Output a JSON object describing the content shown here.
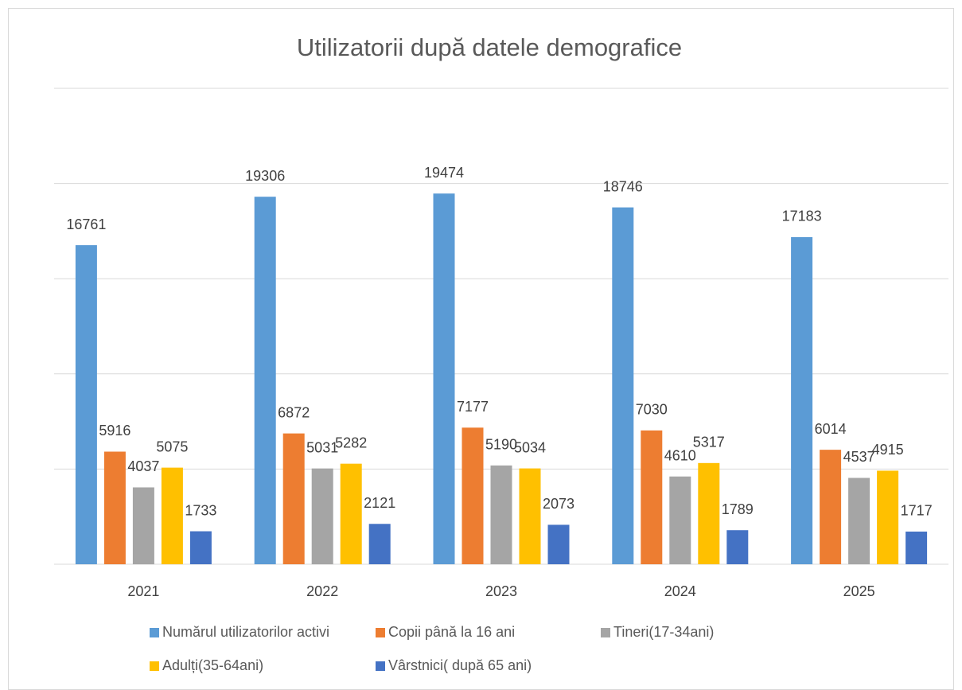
{
  "chart_data": {
    "type": "bar",
    "title": "Utilizatorii după datele demografice",
    "categories": [
      "2021",
      "2022",
      "2023",
      "2024",
      "2025"
    ],
    "series": [
      {
        "name": "Numărul utilizatorilor activi",
        "color": "#5b9bd5",
        "values": [
          16761,
          19306,
          19474,
          18746,
          17183
        ]
      },
      {
        "name": "Copii până la 16 ani",
        "color": "#ed7d31",
        "values": [
          5916,
          6872,
          7177,
          7030,
          6014
        ]
      },
      {
        "name": "Tineri(17-34ani)",
        "color": "#a5a5a5",
        "values": [
          4037,
          5031,
          5190,
          4610,
          4537
        ]
      },
      {
        "name": "Adulți(35-64ani)",
        "color": "#ffc000",
        "values": [
          5075,
          5282,
          5034,
          5317,
          4915
        ]
      },
      {
        "name": "Vârstnici( după 65 ani)",
        "color": "#4472c4",
        "values": [
          1733,
          2121,
          2073,
          1789,
          1717
        ]
      }
    ],
    "ylim": [
      0,
      25000
    ],
    "yticks": [
      0,
      5000,
      10000,
      15000,
      20000,
      25000
    ],
    "grid": true,
    "legend": "bottom"
  }
}
